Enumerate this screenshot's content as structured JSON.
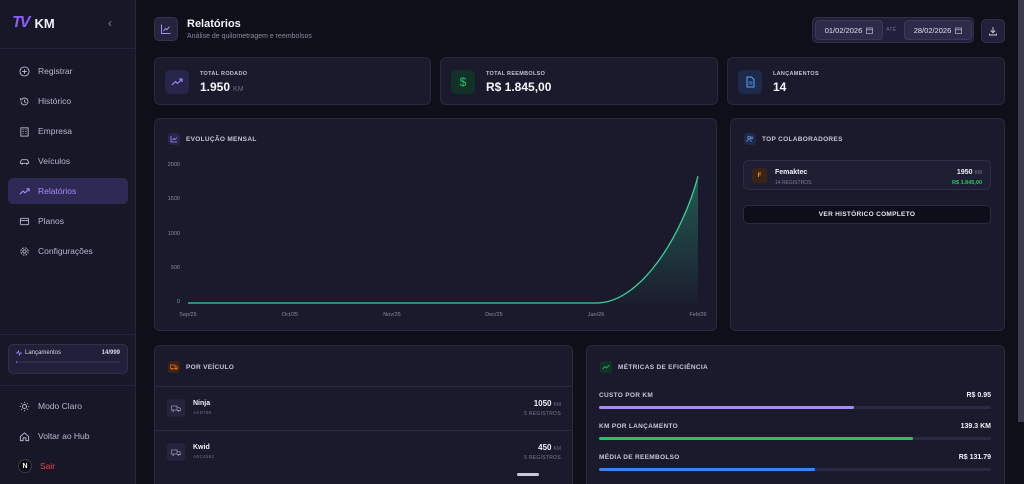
{
  "brand": {
    "logo": "TV",
    "name": "KM"
  },
  "sidebar": {
    "collapse_icon": "chevron-left-icon",
    "items": [
      {
        "label": "Registrar",
        "icon": "plus-circle-icon",
        "active": false
      },
      {
        "label": "Histórico",
        "icon": "history-icon",
        "active": false
      },
      {
        "label": "Empresa",
        "icon": "building-icon",
        "active": false
      },
      {
        "label": "Veículos",
        "icon": "car-icon",
        "active": false
      },
      {
        "label": "Relatórios",
        "icon": "trending-up-icon",
        "active": true
      },
      {
        "label": "Planos",
        "icon": "credit-card-icon",
        "active": false
      },
      {
        "label": "Configurações",
        "icon": "gear-icon",
        "active": false
      }
    ],
    "usage": {
      "label": "Lançamentos",
      "value": "14/999",
      "fraction": 0.014
    },
    "bottom": [
      {
        "label": "Modo Claro",
        "icon": "sun-icon"
      },
      {
        "label": "Voltar ao Hub",
        "icon": "home-icon"
      },
      {
        "label": "Sair",
        "icon": "avatar-n-icon",
        "avatar_letter": "N"
      }
    ]
  },
  "header": {
    "title": "Relatórios",
    "subtitle": "Análise de quilometragem e reembolsos",
    "date_from": "01/02/2026",
    "date_sep": "ATÉ",
    "date_to": "28/02/2026"
  },
  "stats": [
    {
      "label": "TOTAL RODADO",
      "value": "1.950",
      "unit": "KM",
      "icon": "trending-up-icon"
    },
    {
      "label": "TOTAL REEMBOLSO",
      "value": "R$ 1.845,00",
      "unit": "",
      "icon": "dollar-icon"
    },
    {
      "label": "LANÇAMENTOS",
      "value": "14",
      "unit": "",
      "icon": "document-icon"
    }
  ],
  "evolution": {
    "title": "EVOLUÇÃO MENSAL"
  },
  "chart_data": {
    "type": "area",
    "title": "EVOLUÇÃO MENSAL",
    "x": [
      "Sep/25",
      "Oct/25",
      "Nov/25",
      "Dec/25",
      "Jan/26",
      "Feb/26"
    ],
    "series": [
      {
        "values": [
          0,
          0,
          0,
          0,
          0,
          1850
        ]
      }
    ],
    "yticks": [
      "2000",
      "1500",
      "1000",
      "500",
      "0"
    ],
    "ylim": [
      0,
      2000
    ],
    "grid": false,
    "color": "#34d399"
  },
  "top": {
    "title": "TOP COLABORADORES",
    "collaborator": {
      "initial": "F",
      "name": "Femaktec",
      "registros": "14 REGISTROS",
      "km": "1950",
      "km_unit": "KM",
      "money": "R$ 1.845,00"
    },
    "button": "VER HISTÓRICO COMPLETO"
  },
  "vehicles": {
    "title": "POR VEÍCULO",
    "items": [
      {
        "name": "Ninja",
        "plate": "ASD789",
        "km": "1050",
        "unit": "KM",
        "registros": "5 REGISTROS"
      },
      {
        "name": "Kwid",
        "plate": "ABC4562",
        "km": "450",
        "unit": "KM",
        "registros": "5 REGISTROS"
      }
    ]
  },
  "metrics": {
    "title": "MÉTRICAS DE EFICIÊNCIA",
    "items": [
      {
        "label": "CUSTO POR KM",
        "value": "R$ 0.95",
        "fraction": 0.65,
        "color": "#a78bfa"
      },
      {
        "label": "KM POR LANÇAMENTO",
        "value": "139.3 KM",
        "fraction": 0.8,
        "color": "#22c55e"
      },
      {
        "label": "MÉDIA DE REEMBOLSO",
        "value": "R$ 131.79",
        "fraction": 0.55,
        "color": "#3b82f6"
      }
    ]
  }
}
